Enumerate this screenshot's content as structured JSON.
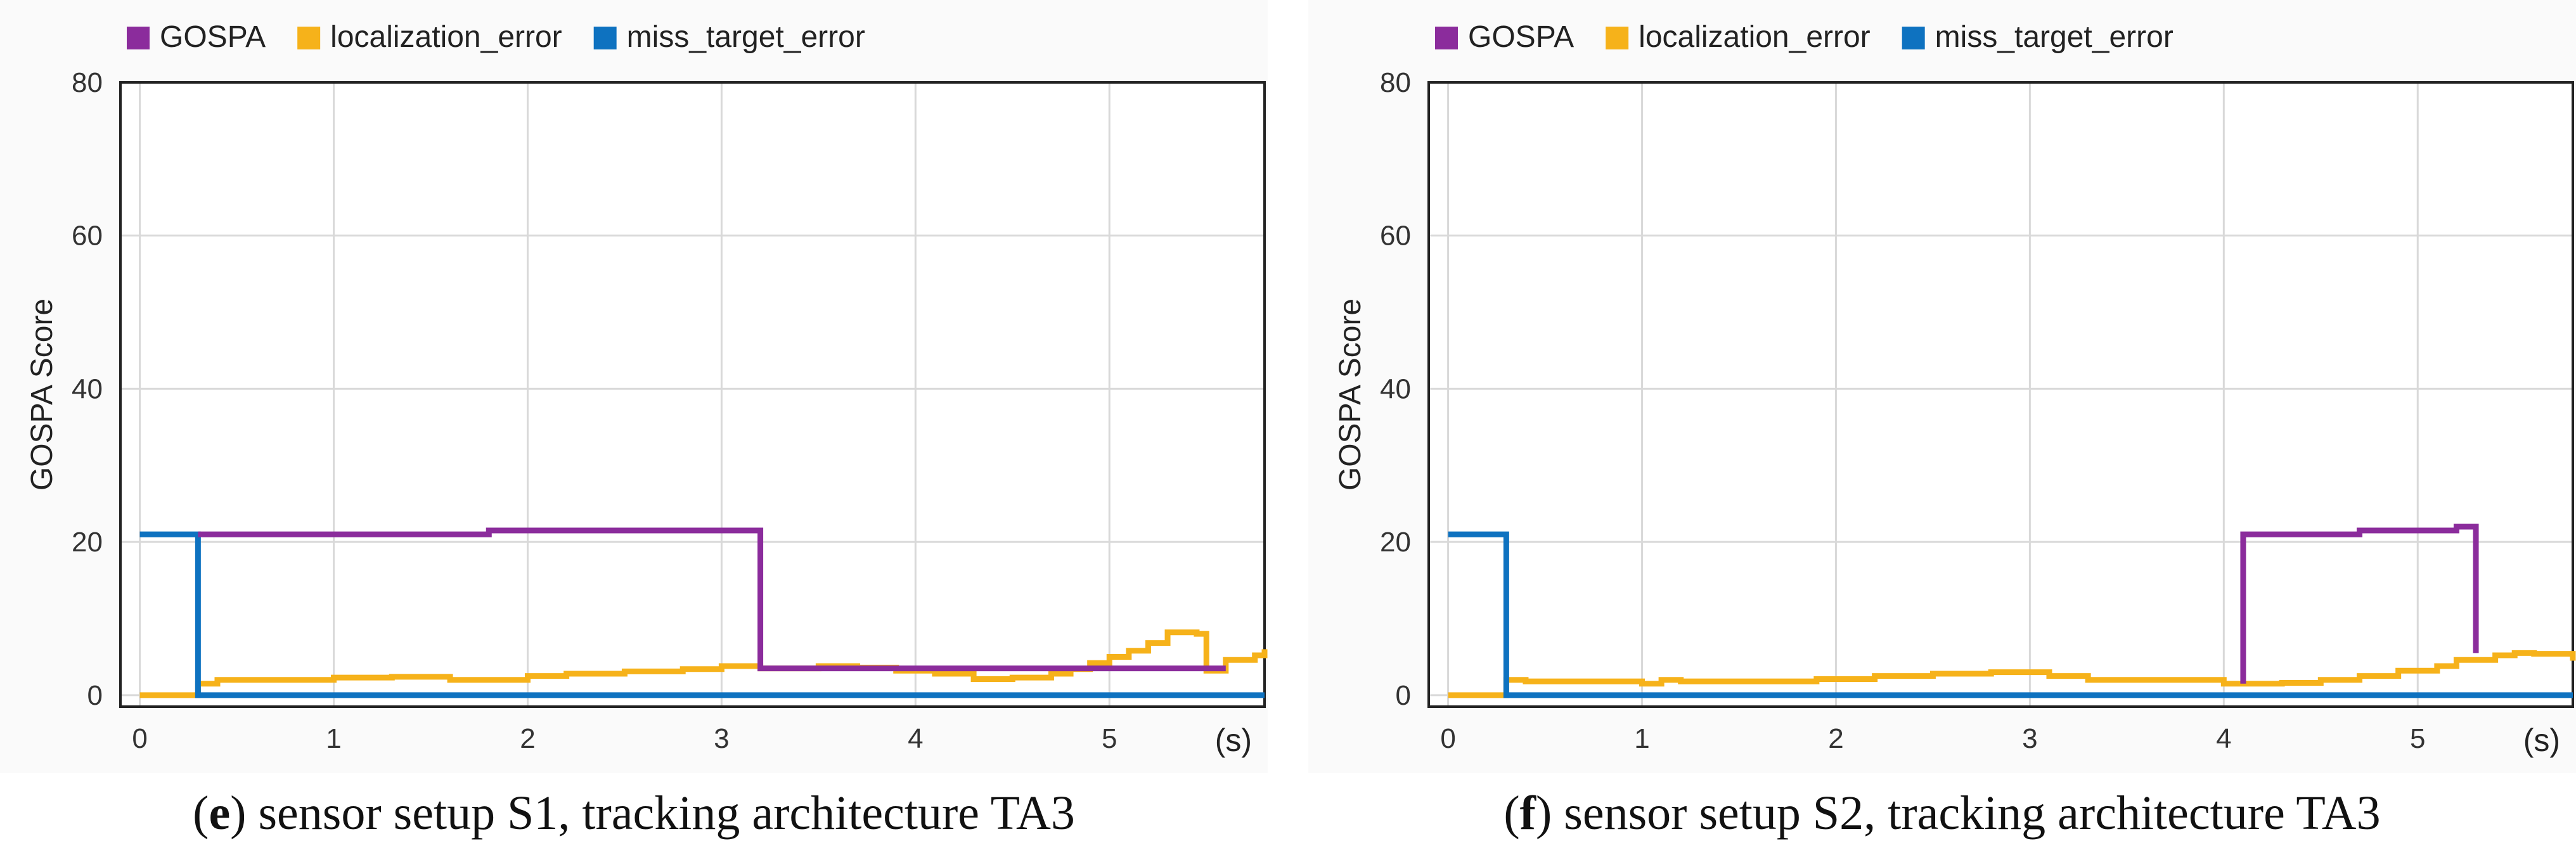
{
  "charts": [
    {
      "caption": {
        "letter": "e",
        "open": "(",
        "close": ")",
        "text": " sensor setup S1, tracking architecture TA3"
      },
      "chart_data": {
        "type": "line",
        "title": "",
        "xlabel": "(s)",
        "ylabel": "GOSPA Score",
        "xlim": [
          -0.1,
          5.8
        ],
        "ylim": [
          -1.5,
          80
        ],
        "xticks": [
          0,
          1,
          2,
          3,
          4,
          5
        ],
        "yticks": [
          0,
          20,
          40,
          60,
          80
        ],
        "grid": true,
        "legend": "top-left",
        "series": [
          {
            "name": "GOSPA",
            "color": "#8B2C9C",
            "step": true,
            "x": [
              0.3,
              1.8,
              3.2,
              3.2,
              5.6
            ],
            "y": [
              21,
              21.5,
              21.5,
              3.5,
              3.5
            ]
          },
          {
            "name": "localization_error",
            "color": "#F6B21A",
            "step": true,
            "x": [
              0.0,
              0.3,
              0.4,
              0.6,
              1.0,
              1.3,
              1.6,
              2.0,
              2.2,
              2.5,
              2.8,
              3.0,
              3.2,
              3.5,
              3.7,
              3.9,
              4.1,
              4.3,
              4.5,
              4.7,
              4.8,
              4.9,
              5.0,
              5.1,
              5.2,
              5.3,
              5.45,
              5.5,
              5.6,
              5.75,
              5.8
            ],
            "y": [
              0,
              1.5,
              2,
              2,
              2.3,
              2.4,
              2.0,
              2.5,
              2.8,
              3.1,
              3.4,
              3.8,
              3.5,
              3.8,
              3.6,
              3.2,
              2.8,
              2.1,
              2.3,
              2.8,
              3.4,
              4.2,
              5.0,
              5.8,
              6.8,
              8.2,
              8.0,
              3.2,
              4.6,
              5.2,
              6.0
            ]
          },
          {
            "name": "miss_target_error",
            "color": "#0E72C0",
            "step": true,
            "x": [
              0.0,
              0.3,
              0.3,
              5.8
            ],
            "y": [
              21,
              21,
              0,
              0
            ]
          }
        ]
      }
    },
    {
      "caption": {
        "letter": "f",
        "open": "(",
        "close": ")",
        "text": " sensor setup S2, tracking architecture TA3"
      },
      "chart_data": {
        "type": "line",
        "title": "",
        "xlabel": "(s)",
        "ylabel": "GOSPA Score",
        "xlim": [
          -0.1,
          5.8
        ],
        "ylim": [
          -1.5,
          80
        ],
        "xticks": [
          0,
          1,
          2,
          3,
          4,
          5
        ],
        "yticks": [
          0,
          20,
          40,
          60,
          80
        ],
        "grid": true,
        "legend": "top-left",
        "series": [
          {
            "name": "GOSPA",
            "color": "#8B2C9C",
            "step": true,
            "x": [
              4.1,
              4.1,
              4.7,
              5.2,
              5.3,
              5.3
            ],
            "y": [
              1.5,
              21,
              21.5,
              22,
              22,
              5.5
            ]
          },
          {
            "name": "localization_error",
            "color": "#F6B21A",
            "step": true,
            "x": [
              0.0,
              0.3,
              0.4,
              1.0,
              1.1,
              1.2,
              1.9,
              2.2,
              2.5,
              2.8,
              3.1,
              3.3,
              3.6,
              4.0,
              4.3,
              4.5,
              4.7,
              4.9,
              5.1,
              5.2,
              5.4,
              5.5,
              5.6,
              5.8
            ],
            "y": [
              0,
              2.0,
              1.8,
              1.5,
              2.0,
              1.8,
              2.1,
              2.5,
              2.8,
              3.0,
              2.5,
              2.0,
              2.0,
              1.5,
              1.6,
              2.0,
              2.5,
              3.2,
              3.8,
              4.6,
              5.2,
              5.5,
              5.4,
              4.5
            ]
          },
          {
            "name": "miss_target_error",
            "color": "#0E72C0",
            "step": true,
            "x": [
              0.0,
              0.3,
              0.3,
              5.8
            ],
            "y": [
              21,
              21,
              0,
              0
            ]
          }
        ]
      }
    }
  ]
}
